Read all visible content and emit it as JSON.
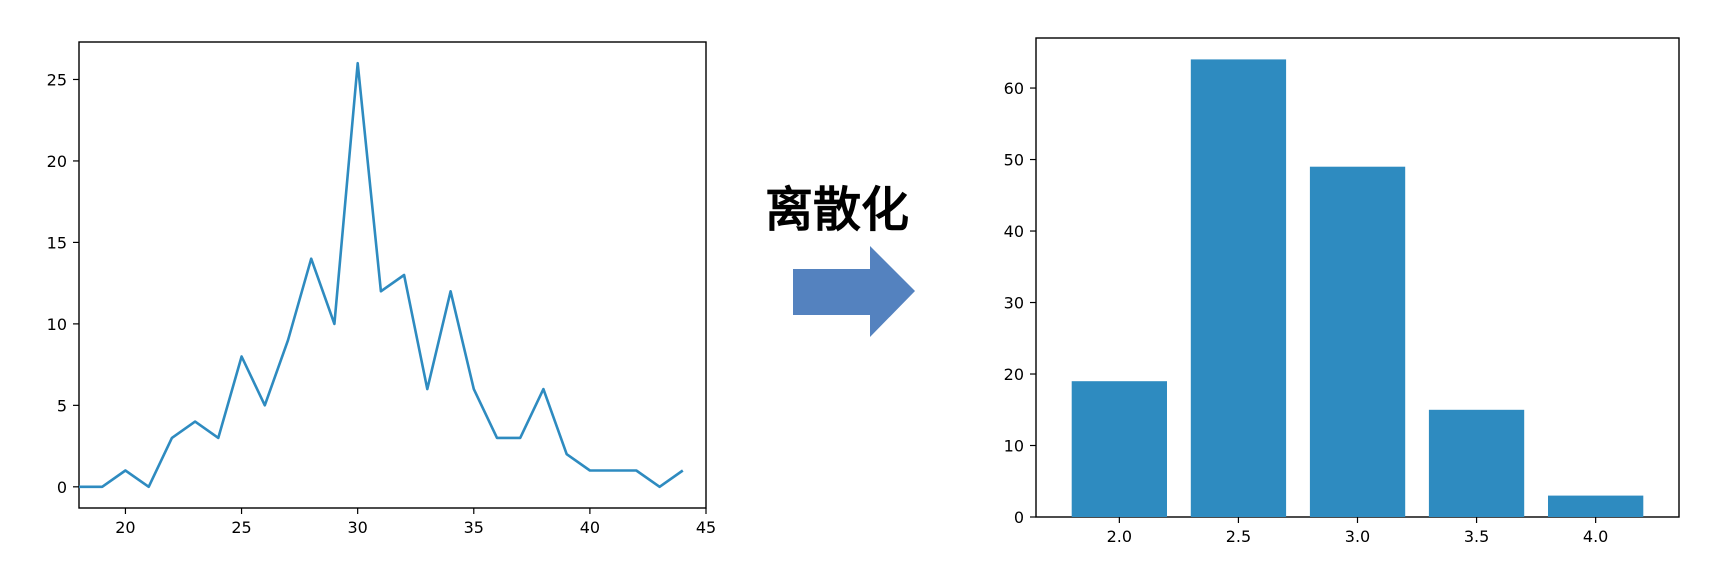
{
  "middle_label": "离散化",
  "colors": {
    "line": "#2e8bc0",
    "bar": "#2e8bc0",
    "arrow": "#5482bf",
    "axis": "#000000"
  },
  "chart_data": [
    {
      "type": "line",
      "title": "",
      "xlabel": "",
      "ylabel": "",
      "xlim": [
        18,
        45
      ],
      "ylim": [
        -1.3,
        27.3
      ],
      "xticks": [
        "20",
        "25",
        "30",
        "35",
        "40",
        "45"
      ],
      "yticks": [
        "0",
        "5",
        "10",
        "15",
        "20",
        "25"
      ],
      "x": [
        18,
        19,
        20,
        21,
        22,
        23,
        24,
        25,
        26,
        27,
        28,
        29,
        30,
        31,
        32,
        33,
        34,
        35,
        36,
        37,
        38,
        39,
        40,
        41,
        42,
        43,
        44
      ],
      "y": [
        0,
        0,
        1,
        0,
        3,
        4,
        3,
        8,
        5,
        9,
        14,
        10,
        26,
        12,
        13,
        6,
        12,
        6,
        3,
        3,
        6,
        2,
        1,
        1,
        1,
        0,
        1
      ],
      "grid": false
    },
    {
      "type": "bar",
      "title": "",
      "xlabel": "",
      "ylabel": "",
      "categories": [
        "2.0",
        "2.5",
        "3.0",
        "3.5",
        "4.0"
      ],
      "values": [
        19,
        64,
        49,
        15,
        3
      ],
      "ylim": [
        0,
        67
      ],
      "yticks": [
        "0",
        "10",
        "20",
        "30",
        "40",
        "50",
        "60"
      ],
      "grid": false
    }
  ]
}
